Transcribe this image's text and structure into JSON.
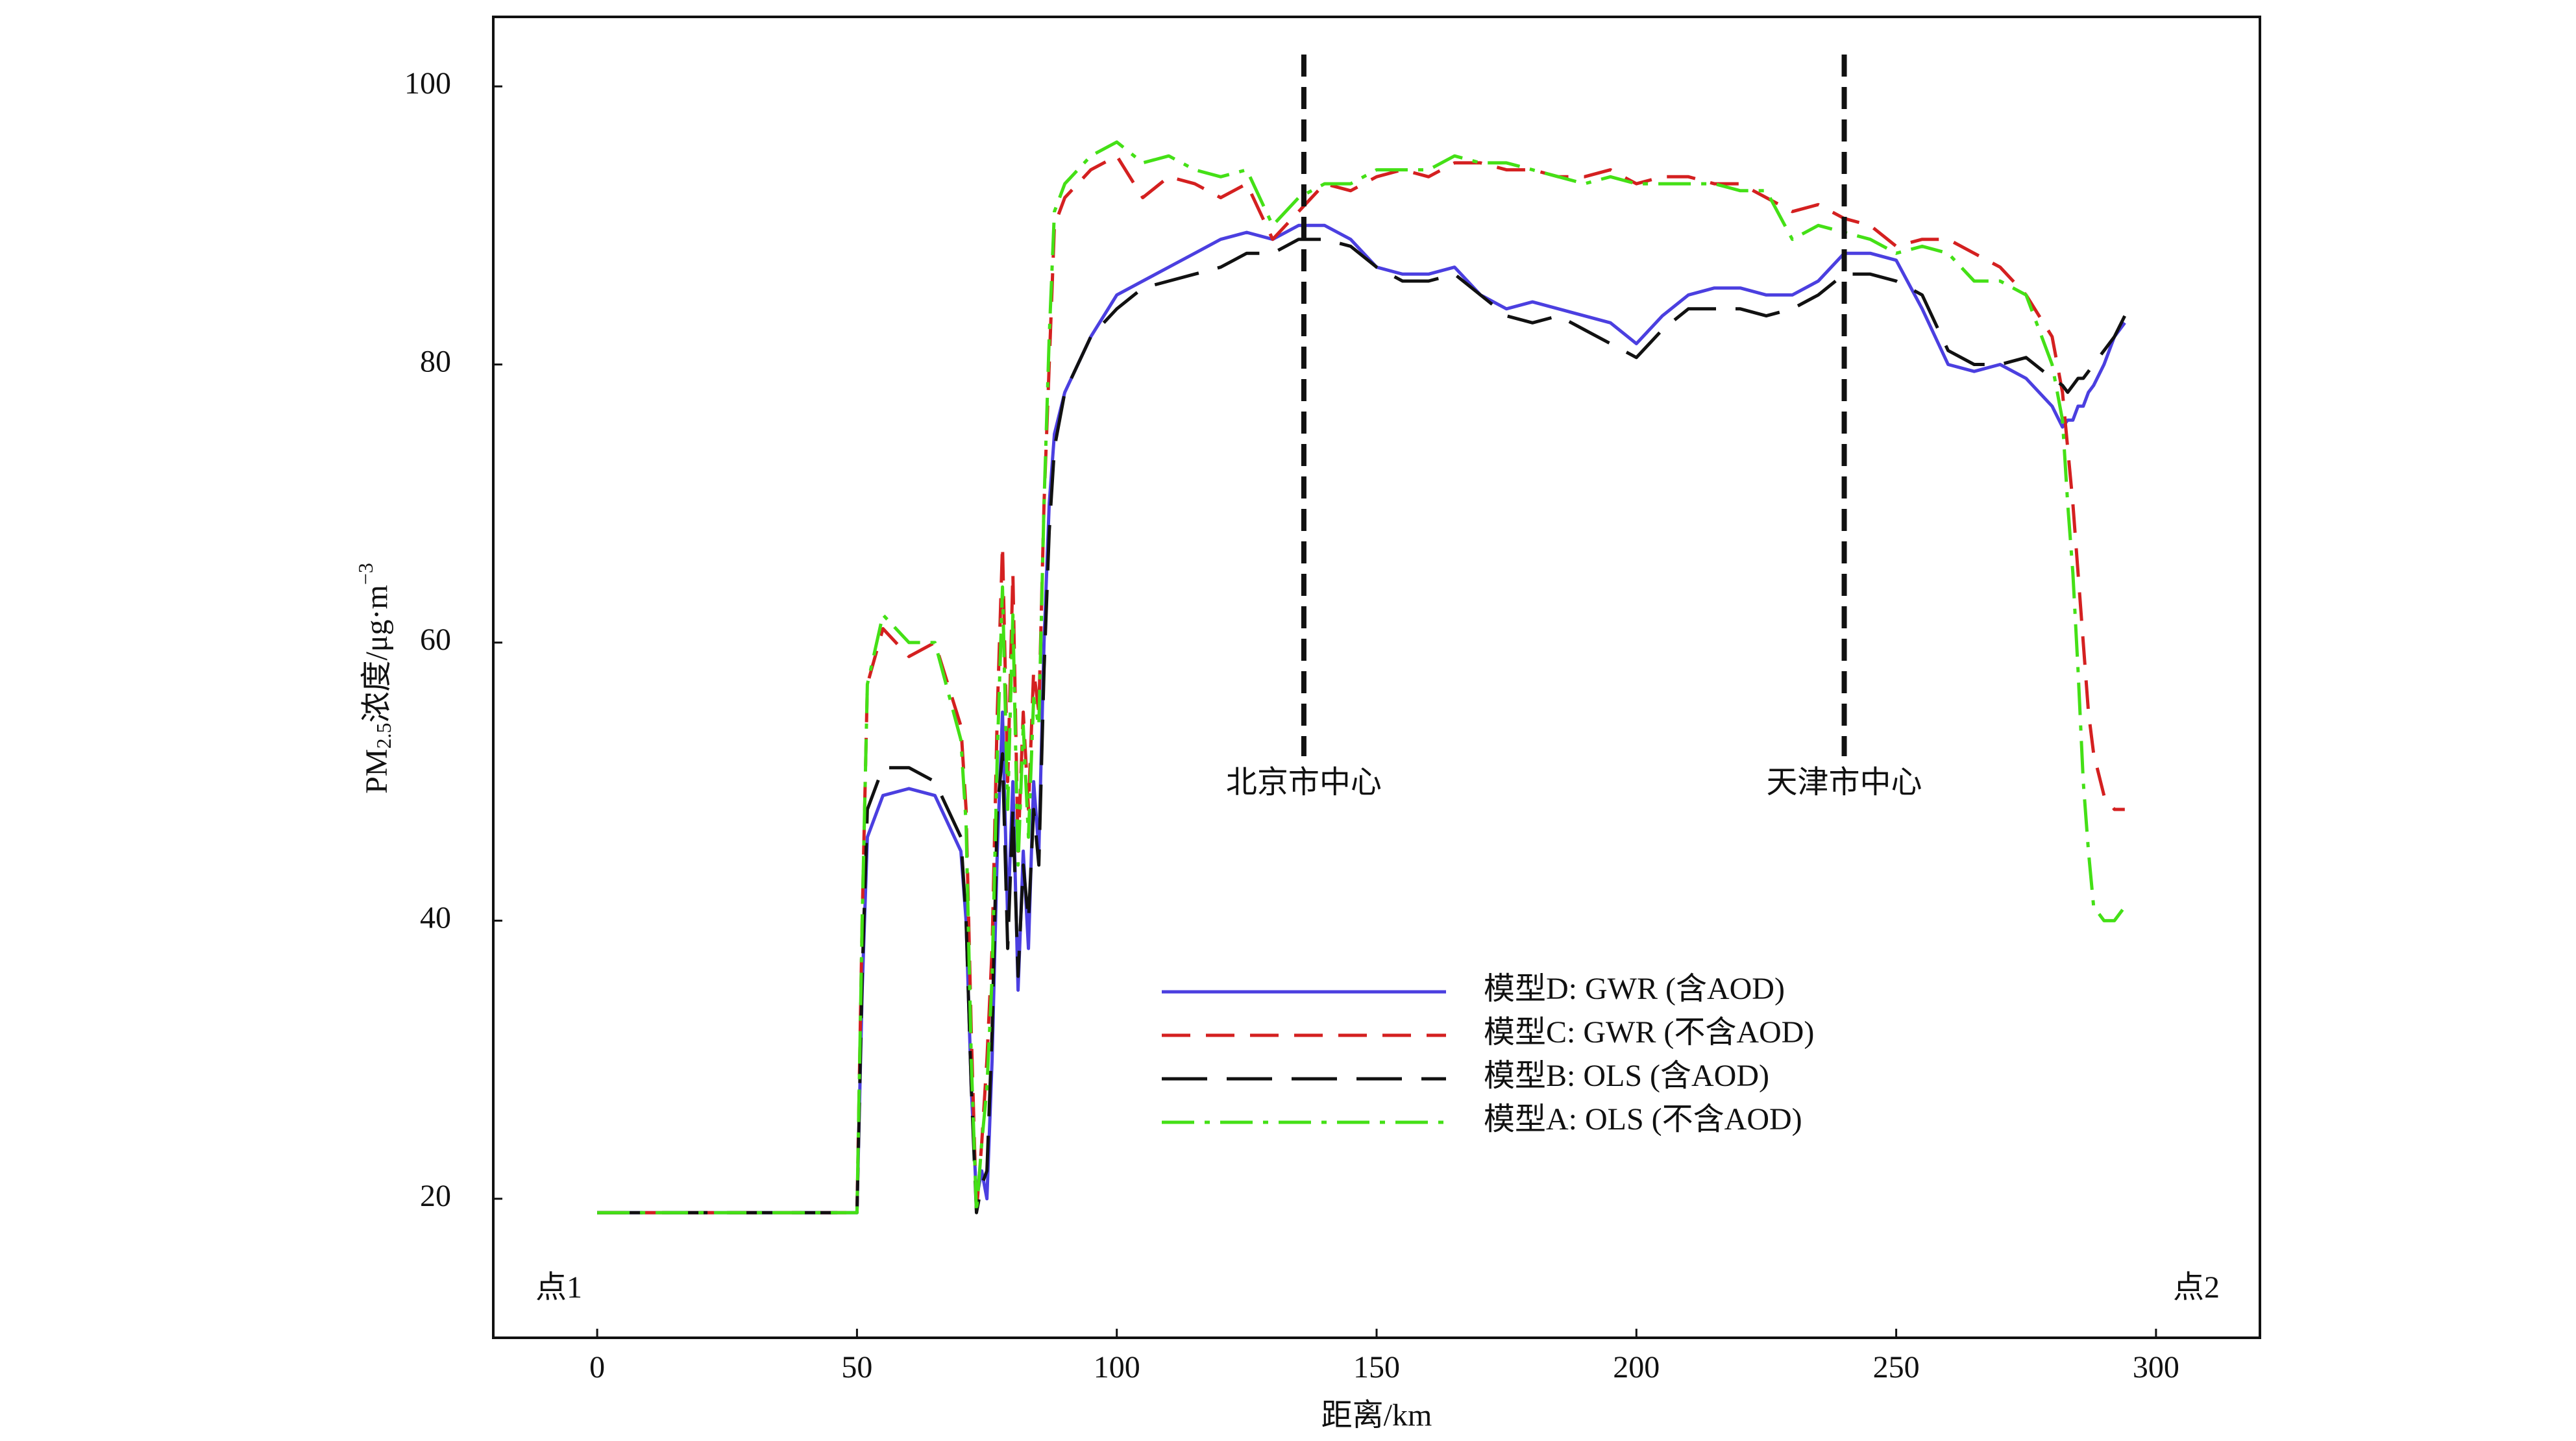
{
  "chart_data": {
    "type": "line",
    "xlabel": "距离/km",
    "ylabel_parts": [
      "PM",
      "2.5",
      "浓度/μg·m",
      "−3"
    ],
    "start_label": "点1",
    "end_label": "点2",
    "annotations": [
      {
        "text": "北京市中心",
        "x": 136
      },
      {
        "text": "天津市中心",
        "x": 240
      }
    ],
    "xlim": [
      -20,
      320
    ],
    "xticks": [
      0,
      50,
      100,
      150,
      200,
      250,
      300
    ],
    "ylim": [
      10,
      105
    ],
    "yticks": [
      20,
      40,
      60,
      80,
      100
    ],
    "x": [
      0,
      10,
      20,
      30,
      40,
      49,
      50,
      51,
      52,
      55,
      60,
      65,
      70,
      71,
      72,
      73,
      74,
      75,
      76,
      77,
      78,
      79,
      80,
      81,
      82,
      83,
      84,
      85,
      86,
      87,
      88,
      90,
      95,
      100,
      105,
      110,
      115,
      120,
      125,
      130,
      135,
      140,
      145,
      150,
      155,
      160,
      165,
      170,
      175,
      180,
      185,
      190,
      195,
      200,
      205,
      210,
      215,
      220,
      225,
      230,
      235,
      240,
      245,
      250,
      255,
      260,
      265,
      270,
      275,
      280,
      282,
      283,
      284,
      285,
      286,
      287,
      288,
      290,
      292,
      294
    ],
    "series": [
      {
        "name": "模型D: GWR (含AOD)",
        "color": "#4b3fe0",
        "dash": "solid",
        "values": [
          19,
          19,
          19,
          19,
          19,
          19,
          19,
          35,
          46,
          49,
          49.5,
          49,
          45,
          40,
          28,
          20,
          22,
          20,
          30,
          45,
          55,
          40,
          50,
          35,
          45,
          38,
          50,
          45,
          60,
          70,
          75,
          78,
          82,
          85,
          86,
          87,
          88,
          89,
          89.5,
          89,
          90,
          90,
          89,
          87,
          86.5,
          86.5,
          87,
          85,
          84,
          84.5,
          84,
          83.5,
          83,
          81.5,
          83.5,
          85,
          85.5,
          85.5,
          85,
          85,
          86,
          88,
          88,
          87.5,
          84,
          80,
          79.5,
          80,
          79,
          77,
          75.5,
          76,
          76,
          77,
          77,
          78,
          78.5,
          80,
          82,
          83
        ]
      },
      {
        "name": "模型C: GWR (不含AOD)",
        "color": "#d42020",
        "dash": "dashed",
        "values": [
          19,
          19,
          19,
          19,
          19,
          19,
          19,
          40,
          57,
          61,
          59,
          60,
          54,
          48,
          32,
          19,
          24,
          30,
          38,
          55,
          67,
          50,
          65,
          45,
          55,
          48,
          58,
          55,
          70,
          80,
          90,
          92,
          94,
          95,
          92,
          93.5,
          93,
          92,
          93,
          89,
          91,
          93,
          92.5,
          93.5,
          94,
          93.5,
          94.5,
          94.5,
          94,
          94,
          93.5,
          93.5,
          94,
          93,
          93.5,
          93.5,
          93,
          93,
          92,
          91,
          91.5,
          90.5,
          90,
          88.5,
          89,
          89,
          88,
          87,
          85,
          82,
          78,
          74,
          70,
          65,
          60,
          55,
          52,
          49,
          48,
          48
        ]
      },
      {
        "name": "模型B: OLS (含AOD)",
        "color": "#111111",
        "dash": "longdash",
        "values": [
          19,
          19,
          19,
          19,
          19,
          19,
          19,
          36,
          48,
          51,
          51,
          50,
          46,
          40,
          28,
          19,
          21,
          22,
          32,
          48,
          52,
          38,
          48,
          36,
          44,
          40,
          48,
          44,
          58,
          68,
          74,
          78,
          82,
          84,
          85.5,
          86,
          86.5,
          87,
          88,
          88,
          89,
          89,
          88.5,
          87,
          86,
          86,
          86.5,
          85,
          83.5,
          83,
          83.5,
          82.5,
          81.5,
          80.5,
          82.5,
          84,
          84,
          84,
          83.5,
          84,
          85,
          86.5,
          86.5,
          86,
          85,
          81,
          80,
          80,
          80.5,
          79,
          78.5,
          78,
          78.5,
          79,
          79,
          79.5,
          80,
          81,
          82,
          83.5
        ]
      },
      {
        "name": "模型A: OLS (不含AOD)",
        "color": "#44e016",
        "dash": "dashdot",
        "values": [
          19,
          19,
          19,
          19,
          19,
          19,
          19,
          40,
          57,
          62,
          60,
          60,
          53,
          47,
          30,
          19,
          24,
          28,
          36,
          52,
          64,
          48,
          62,
          44,
          54,
          46,
          56,
          54,
          70,
          82,
          91,
          93,
          95,
          96,
          94.5,
          95,
          94,
          93.5,
          94,
          90,
          92,
          93,
          93,
          94,
          94,
          94,
          95,
          94.5,
          94.5,
          94,
          93.5,
          93,
          93.5,
          93,
          93,
          93,
          93,
          92.5,
          92.5,
          89,
          90,
          89.5,
          89,
          88,
          88.5,
          88,
          86,
          86,
          85,
          80,
          76,
          70,
          65,
          58,
          50,
          45,
          41,
          40,
          40,
          41
        ]
      }
    ]
  }
}
